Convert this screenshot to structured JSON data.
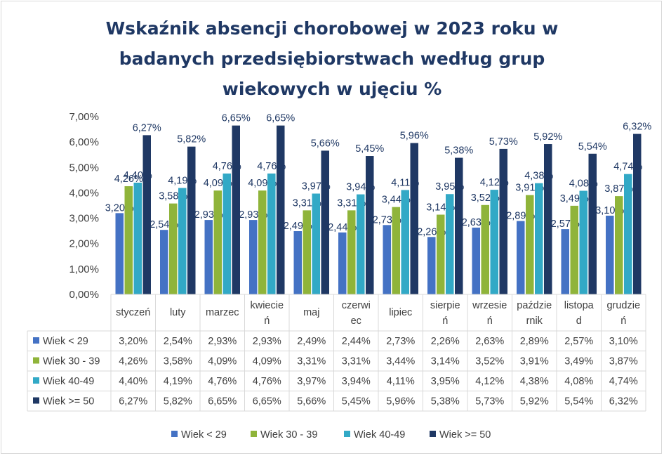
{
  "chart_data": {
    "type": "bar",
    "title_lines": [
      "Wskaźnik absencji chorobowej w 2023 roku w",
      "badanych przedsiębiorstwach według grup",
      "wiekowych w ujęciu %"
    ],
    "categories": [
      [
        "styczeń"
      ],
      [
        "luty"
      ],
      [
        "marzec"
      ],
      [
        "kwiecie",
        "ń"
      ],
      [
        "maj"
      ],
      [
        "czerwi",
        "ec"
      ],
      [
        "lipiec"
      ],
      [
        "sierpie",
        "ń"
      ],
      [
        "wrzesie",
        "ń"
      ],
      [
        "paździe",
        "rnik"
      ],
      [
        "listopa",
        "d"
      ],
      [
        "grudzie",
        "ń"
      ]
    ],
    "series": [
      {
        "name": "Wiek < 29",
        "color": "#4472c4",
        "values": [
          3.2,
          2.54,
          2.93,
          2.93,
          2.49,
          2.44,
          2.73,
          2.26,
          2.63,
          2.89,
          2.57,
          3.1
        ],
        "labels": [
          "3,20%",
          "2,54%",
          "2,93%",
          "2,93%",
          "2,49%",
          "2,44%",
          "2,73%",
          "2,26%",
          "2,63%",
          "2,89%",
          "2,57%",
          "3,10%"
        ]
      },
      {
        "name": "Wiek 30 - 39",
        "color": "#8fb43a",
        "values": [
          4.26,
          3.58,
          4.09,
          4.09,
          3.31,
          3.31,
          3.44,
          3.14,
          3.52,
          3.91,
          3.49,
          3.87
        ],
        "labels": [
          "4,26%",
          "3,58%",
          "4,09%",
          "4,09%",
          "3,31%",
          "3,31%",
          "3,44%",
          "3,14%",
          "3,52%",
          "3,91%",
          "3,49%",
          "3,87%"
        ]
      },
      {
        "name": "Wiek 40-49",
        "color": "#32a9c6",
        "values": [
          4.4,
          4.19,
          4.76,
          4.76,
          3.97,
          3.94,
          4.11,
          3.95,
          4.12,
          4.38,
          4.08,
          4.74
        ],
        "labels": [
          "4,40%",
          "4,19%",
          "4,76%",
          "4,76%",
          "3,97%",
          "3,94%",
          "4,11%",
          "3,95%",
          "4,12%",
          "4,38%",
          "4,08%",
          "4,74%"
        ]
      },
      {
        "name": "Wiek >= 50",
        "color": "#1f3864",
        "values": [
          6.27,
          5.82,
          6.65,
          6.65,
          5.66,
          5.45,
          5.96,
          5.38,
          5.73,
          5.92,
          5.54,
          6.32
        ],
        "labels": [
          "6,27%",
          "5,82%",
          "6,65%",
          "6,65%",
          "5,66%",
          "5,45%",
          "5,96%",
          "5,38%",
          "5,73%",
          "5,92%",
          "5,54%",
          "6,32%"
        ]
      }
    ],
    "ylim": [
      0,
      7
    ],
    "yticks": [
      "0,00%",
      "1,00%",
      "2,00%",
      "3,00%",
      "4,00%",
      "5,00%",
      "6,00%",
      "7,00%"
    ],
    "grid": false,
    "data_table": true,
    "legend_position": "bottom"
  }
}
